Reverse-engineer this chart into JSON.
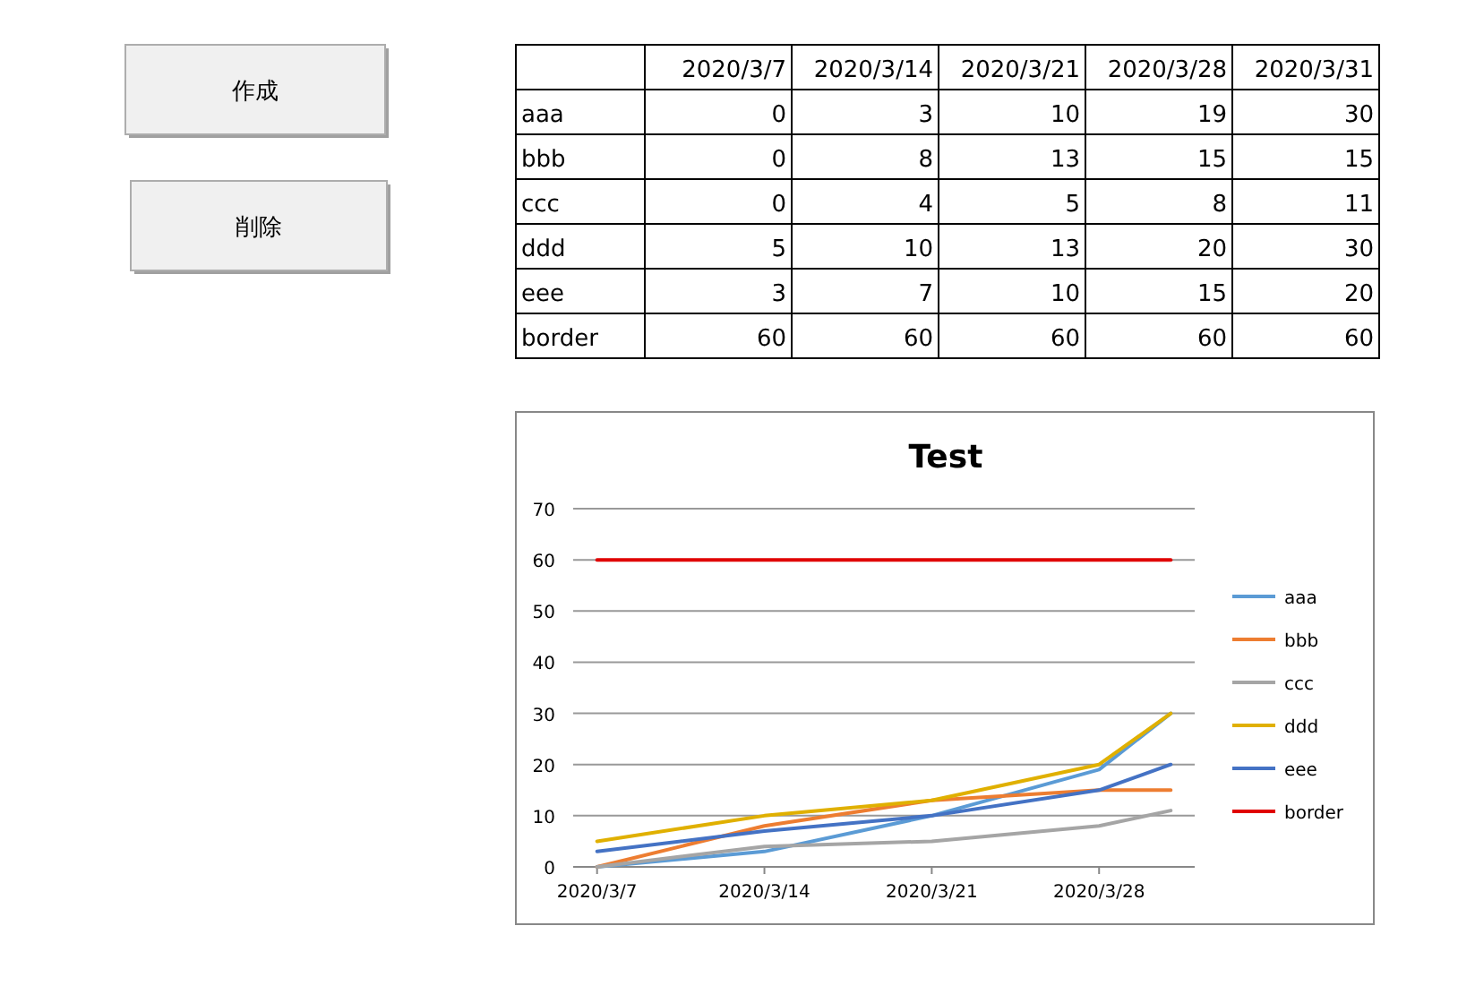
{
  "chart_data": [
    {
      "type": "other",
      "categories": [
        "2020/3/7",
        "2020/3/14",
        "2020/3/21",
        "2020/3/28",
        "2020/3/31"
      ],
      "series": [
        {
          "name": "aaa",
          "values": [
            0,
            3,
            10,
            19,
            30
          ]
        },
        {
          "name": "bbb",
          "values": [
            0,
            8,
            13,
            15,
            15
          ]
        },
        {
          "name": "ccc",
          "values": [
            0,
            4,
            5,
            8,
            11
          ]
        },
        {
          "name": "ddd",
          "values": [
            5,
            10,
            13,
            20,
            30
          ]
        },
        {
          "name": "eee",
          "values": [
            3,
            7,
            10,
            15,
            20
          ]
        },
        {
          "name": "border",
          "values": [
            60,
            60,
            60,
            60,
            60
          ]
        }
      ],
      "data_labels": true,
      "annotations": [
        "作成",
        "削除"
      ]
    },
    {
      "type": "line",
      "title": "Test",
      "x": [
        "2020-03-07",
        "2020-03-14",
        "2020-03-21",
        "2020-03-28",
        "2020-03-31"
      ],
      "series": [
        {
          "name": "aaa",
          "color": "#5b9bd5",
          "values": [
            0,
            3,
            10,
            19,
            30
          ]
        },
        {
          "name": "bbb",
          "color": "#ed7d31",
          "values": [
            0,
            8,
            13,
            15,
            15
          ]
        },
        {
          "name": "ccc",
          "color": "#a5a5a5",
          "values": [
            0,
            4,
            5,
            8,
            11
          ]
        },
        {
          "name": "ddd",
          "color": "#e0b000",
          "values": [
            5,
            10,
            13,
            20,
            30
          ]
        },
        {
          "name": "eee",
          "color": "#4472c4",
          "values": [
            3,
            7,
            10,
            15,
            20
          ]
        },
        {
          "name": "border",
          "color": "#e00000",
          "values": [
            60,
            60,
            60,
            60,
            60
          ]
        }
      ],
      "xlim": [
        "2020-03-06",
        "2020-04-01"
      ],
      "xticks": [
        {
          "value": "2020-03-07",
          "label": "2020/3/7"
        },
        {
          "value": "2020-03-14",
          "label": "2020/3/14"
        },
        {
          "value": "2020-03-21",
          "label": "2020/3/21"
        },
        {
          "value": "2020-03-28",
          "label": "2020/3/28"
        }
      ],
      "ylim": [
        0,
        70
      ],
      "yticks": [
        0,
        10,
        20,
        30,
        40,
        50,
        60,
        70
      ],
      "grid": "y",
      "legend": "right",
      "line_style": "solid"
    }
  ]
}
